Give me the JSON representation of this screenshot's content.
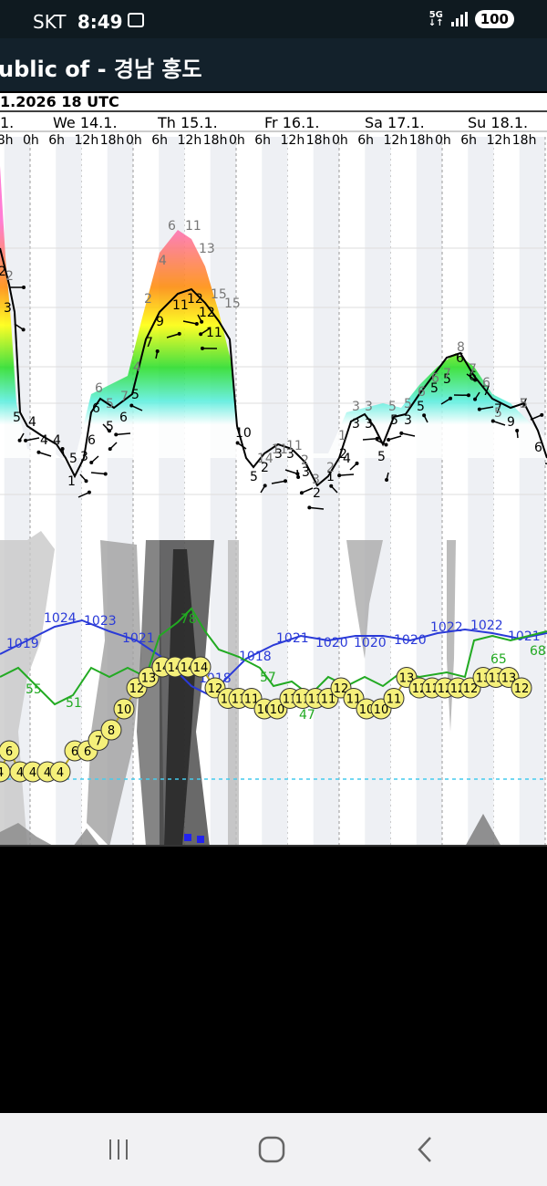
{
  "status_bar": {
    "carrier": "SKT",
    "time": "8:49",
    "network": "5G",
    "battery": "100"
  },
  "header": {
    "title": "ublic of - 경남 홍도"
  },
  "chart_data": {
    "type": "line",
    "run_label": "1.2026 18 UTC",
    "days": [
      {
        "label": "1.",
        "x": 0
      },
      {
        "label": "We 14.1.",
        "x": 58
      },
      {
        "label": "Th 15.1.",
        "x": 173
      },
      {
        "label": "Fr 16.1.",
        "x": 290
      },
      {
        "label": "Sa 17.1.",
        "x": 400
      },
      {
        "label": "Su 18.1.",
        "x": 513
      }
    ],
    "hour_ticks": [
      "8h",
      "0h",
      "6h",
      "12h",
      "18h",
      "0h",
      "6h",
      "12h",
      "18h",
      "0h",
      "6h",
      "12h",
      "18h",
      "0h",
      "6h",
      "12h",
      "18h",
      "0h",
      "6h",
      "12h",
      "18h"
    ],
    "wind": {
      "speed_labels": [
        "2",
        "3",
        "5",
        "4",
        "4",
        "4",
        "1",
        "3",
        "6",
        "5",
        "6",
        "5",
        "7",
        "9",
        "11",
        "12",
        "12",
        "11",
        "10",
        "5",
        "2",
        "3",
        "3",
        "3",
        "2",
        "1",
        "2",
        "3",
        "3",
        "5",
        "5",
        "3",
        "5",
        "5",
        "5",
        "6",
        "6",
        "7",
        "7",
        "9",
        "7",
        "6",
        "5",
        "6",
        "4"
      ],
      "gust_labels": [
        "2",
        "6",
        "5",
        "7",
        "4",
        "2",
        "4",
        "6",
        "11",
        "13",
        "15",
        "15",
        "14",
        "11",
        "11",
        "2",
        "3",
        "2",
        "1",
        "3",
        "3",
        "5",
        "5",
        "6",
        "6",
        "7",
        "8",
        "7",
        "6",
        "5",
        "5"
      ]
    },
    "pressure_hpa": {
      "labels": [
        "1019",
        "1024",
        "1023",
        "1021",
        "1018",
        "1018",
        "1021",
        "1020",
        "1020",
        "1020",
        "1022",
        "1022",
        "1021"
      ]
    },
    "humidity_pct": {
      "labels": [
        "55",
        "51",
        "78",
        "57",
        "47",
        "65",
        "65",
        "68"
      ]
    },
    "temperature_c": {
      "values": [
        4,
        6,
        4,
        4,
        4,
        4,
        6,
        6,
        7,
        8,
        10,
        12,
        13,
        14,
        14,
        14,
        14,
        12,
        11,
        11,
        11,
        10,
        10,
        11,
        11,
        11,
        11,
        12,
        11,
        10,
        10,
        11,
        13,
        12,
        12,
        12,
        12,
        12,
        13,
        13,
        13,
        12
      ],
      "circle_labels": [
        "4",
        "6",
        "4",
        "4",
        "4",
        "4",
        "6",
        "6",
        "7",
        "8",
        "10",
        "12",
        "13",
        "14",
        "14",
        "14",
        "14",
        "12",
        "11",
        "11",
        "11",
        "10",
        "10",
        "11",
        "11",
        "11",
        "11",
        "12",
        "11",
        "10",
        "10",
        "11",
        "13",
        "12",
        "12",
        "12",
        "12",
        "12",
        "13",
        "13",
        "13",
        "12"
      ]
    },
    "precip_label": "",
    "grid": true
  }
}
